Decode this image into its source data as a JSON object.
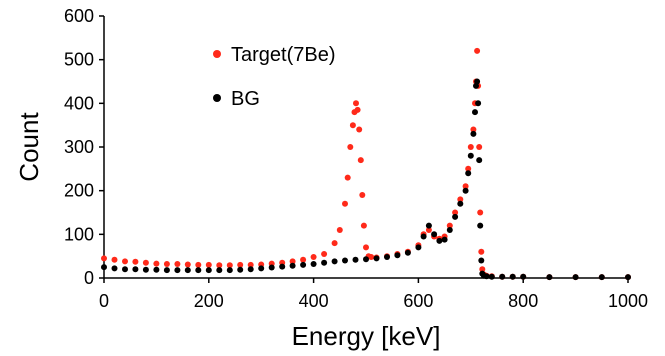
{
  "chart_data": {
    "type": "scatter",
    "title": "",
    "xlabel": "Energy [keV]",
    "ylabel": "Count",
    "xlim": [
      0,
      1000
    ],
    "ylim": [
      0,
      600
    ],
    "xticks": [
      "0",
      "200",
      "400",
      "600",
      "800",
      "1000"
    ],
    "yticks": [
      "0",
      "100",
      "200",
      "300",
      "400",
      "500",
      "600"
    ],
    "grid": false,
    "legend_position": "top-left",
    "series": [
      {
        "name": "Target(7Be)",
        "color": "#ff2a1a",
        "x": [
          0,
          20,
          40,
          60,
          80,
          100,
          120,
          140,
          160,
          180,
          200,
          220,
          240,
          260,
          280,
          300,
          320,
          340,
          360,
          380,
          400,
          420,
          440,
          450,
          460,
          465,
          470,
          475,
          478,
          481,
          484,
          487,
          490,
          493,
          496,
          500,
          505,
          510,
          520,
          540,
          560,
          580,
          600,
          610,
          620,
          630,
          640,
          650,
          660,
          670,
          680,
          690,
          695,
          700,
          705,
          708,
          710,
          712,
          714,
          716,
          718,
          720,
          722,
          725,
          730,
          740,
          760,
          780,
          800,
          850,
          900,
          950,
          1000
        ],
        "y": [
          45,
          42,
          38,
          37,
          35,
          33,
          32,
          32,
          31,
          30,
          30,
          29,
          29,
          30,
          30,
          31,
          33,
          35,
          38,
          42,
          48,
          55,
          80,
          110,
          170,
          230,
          300,
          350,
          380,
          400,
          385,
          340,
          270,
          190,
          120,
          70,
          50,
          48,
          47,
          50,
          55,
          60,
          75,
          100,
          110,
          95,
          90,
          95,
          120,
          150,
          180,
          210,
          250,
          300,
          340,
          400,
          450,
          520,
          440,
          300,
          150,
          60,
          20,
          8,
          5,
          4,
          3,
          3,
          3,
          2,
          2,
          2,
          2
        ]
      },
      {
        "name": "BG",
        "color": "#000000",
        "x": [
          0,
          20,
          40,
          60,
          80,
          100,
          120,
          140,
          160,
          180,
          200,
          220,
          240,
          260,
          280,
          300,
          320,
          340,
          360,
          380,
          400,
          420,
          440,
          460,
          480,
          500,
          520,
          540,
          560,
          580,
          600,
          610,
          620,
          630,
          640,
          650,
          660,
          670,
          680,
          690,
          695,
          700,
          705,
          708,
          710,
          712,
          714,
          716,
          718,
          720,
          722,
          725,
          730,
          740,
          760,
          780,
          800,
          850,
          900,
          950,
          1000
        ],
        "y": [
          25,
          22,
          20,
          20,
          19,
          19,
          18,
          18,
          18,
          18,
          18,
          18,
          18,
          19,
          20,
          22,
          24,
          26,
          28,
          30,
          32,
          35,
          38,
          40,
          42,
          43,
          45,
          48,
          52,
          58,
          70,
          95,
          120,
          100,
          85,
          88,
          110,
          140,
          170,
          200,
          240,
          280,
          330,
          380,
          440,
          450,
          400,
          270,
          120,
          40,
          10,
          5,
          4,
          3,
          3,
          3,
          3,
          2,
          2,
          2,
          2
        ]
      }
    ]
  }
}
